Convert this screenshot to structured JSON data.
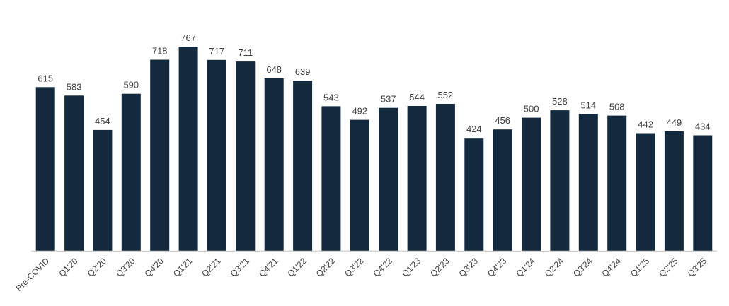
{
  "chart_data": {
    "type": "bar",
    "title": "",
    "xlabel": "",
    "ylabel": "",
    "categories": [
      "Pre-COVID",
      "Q1'20",
      "Q2'20",
      "Q3'20",
      "Q4'20",
      "Q1'21",
      "Q2'21",
      "Q3'21",
      "Q4'21",
      "Q1'22",
      "Q2'22",
      "Q3'22",
      "Q4'22",
      "Q1'23",
      "Q2'23",
      "Q3'23",
      "Q4'23",
      "Q1'24",
      "Q2'24",
      "Q3'24",
      "Q4'24",
      "Q1'25",
      "Q2'25",
      "Q3'25"
    ],
    "values": [
      615,
      583,
      454,
      590,
      718,
      767,
      717,
      711,
      648,
      639,
      543,
      492,
      537,
      544,
      552,
      424,
      456,
      500,
      528,
      514,
      508,
      442,
      449,
      434
    ],
    "ylim": [
      0,
      767
    ],
    "grid": false,
    "legend": null,
    "data_labels": true,
    "colors": {
      "bar": "#132a3e",
      "label": "#404040",
      "axis": "#d0d0d0"
    }
  }
}
